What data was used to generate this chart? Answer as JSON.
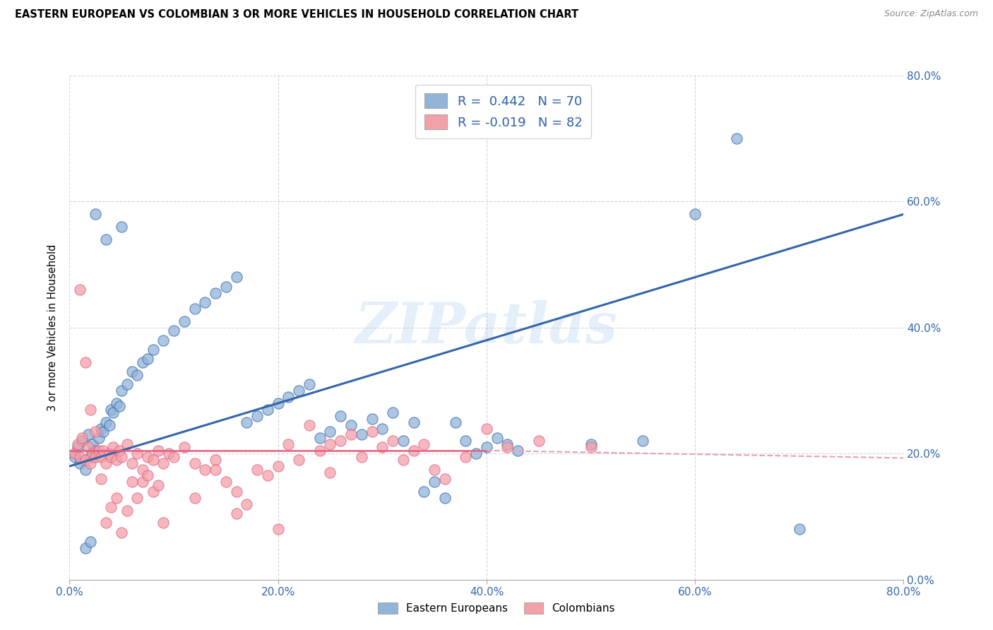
{
  "title": "EASTERN EUROPEAN VS COLOMBIAN 3 OR MORE VEHICLES IN HOUSEHOLD CORRELATION CHART",
  "source": "Source: ZipAtlas.com",
  "ylabel": "3 or more Vehicles in Household",
  "watermark": "ZIPatlas",
  "blue_color": "#92B4D9",
  "pink_color": "#F4A0A8",
  "blue_line_color": "#3366AA",
  "pink_line_color": "#E06080",
  "pink_line_dashed_color": "#E8A0B0",
  "r_blue": 0.442,
  "n_blue": 70,
  "r_pink": -0.019,
  "n_pink": 82,
  "xlim": [
    0.0,
    0.8
  ],
  "ylim": [
    0.0,
    0.8
  ],
  "blue_scatter_x": [
    0.005,
    0.008,
    0.01,
    0.012,
    0.015,
    0.018,
    0.02,
    0.022,
    0.025,
    0.028,
    0.03,
    0.032,
    0.035,
    0.038,
    0.04,
    0.042,
    0.045,
    0.048,
    0.05,
    0.055,
    0.06,
    0.065,
    0.07,
    0.075,
    0.08,
    0.09,
    0.1,
    0.11,
    0.12,
    0.13,
    0.14,
    0.15,
    0.16,
    0.17,
    0.18,
    0.19,
    0.2,
    0.21,
    0.22,
    0.23,
    0.24,
    0.25,
    0.26,
    0.27,
    0.28,
    0.29,
    0.3,
    0.31,
    0.32,
    0.33,
    0.34,
    0.35,
    0.36,
    0.37,
    0.38,
    0.39,
    0.4,
    0.41,
    0.42,
    0.43,
    0.5,
    0.55,
    0.6,
    0.64,
    0.7,
    0.05,
    0.025,
    0.035,
    0.015,
    0.02
  ],
  "blue_scatter_y": [
    0.195,
    0.21,
    0.185,
    0.22,
    0.175,
    0.23,
    0.195,
    0.215,
    0.205,
    0.225,
    0.24,
    0.235,
    0.25,
    0.245,
    0.27,
    0.265,
    0.28,
    0.275,
    0.3,
    0.31,
    0.33,
    0.325,
    0.345,
    0.35,
    0.365,
    0.38,
    0.395,
    0.41,
    0.43,
    0.44,
    0.455,
    0.465,
    0.48,
    0.25,
    0.26,
    0.27,
    0.28,
    0.29,
    0.3,
    0.31,
    0.225,
    0.235,
    0.26,
    0.245,
    0.23,
    0.255,
    0.24,
    0.265,
    0.22,
    0.25,
    0.14,
    0.155,
    0.13,
    0.25,
    0.22,
    0.2,
    0.21,
    0.225,
    0.215,
    0.205,
    0.215,
    0.22,
    0.58,
    0.7,
    0.08,
    0.56,
    0.58,
    0.54,
    0.05,
    0.06
  ],
  "pink_scatter_x": [
    0.005,
    0.008,
    0.01,
    0.012,
    0.015,
    0.018,
    0.02,
    0.022,
    0.025,
    0.028,
    0.03,
    0.032,
    0.035,
    0.038,
    0.04,
    0.042,
    0.045,
    0.048,
    0.05,
    0.055,
    0.06,
    0.065,
    0.07,
    0.075,
    0.08,
    0.085,
    0.09,
    0.095,
    0.1,
    0.11,
    0.12,
    0.13,
    0.14,
    0.15,
    0.16,
    0.17,
    0.18,
    0.19,
    0.2,
    0.21,
    0.22,
    0.23,
    0.24,
    0.25,
    0.26,
    0.27,
    0.28,
    0.29,
    0.3,
    0.31,
    0.32,
    0.33,
    0.34,
    0.35,
    0.36,
    0.38,
    0.4,
    0.42,
    0.45,
    0.5,
    0.01,
    0.015,
    0.02,
    0.025,
    0.03,
    0.035,
    0.04,
    0.045,
    0.05,
    0.055,
    0.06,
    0.065,
    0.07,
    0.075,
    0.08,
    0.085,
    0.09,
    0.12,
    0.14,
    0.16,
    0.2,
    0.25
  ],
  "pink_scatter_y": [
    0.2,
    0.215,
    0.195,
    0.225,
    0.19,
    0.21,
    0.185,
    0.2,
    0.195,
    0.205,
    0.195,
    0.205,
    0.185,
    0.2,
    0.195,
    0.21,
    0.19,
    0.205,
    0.195,
    0.215,
    0.185,
    0.2,
    0.175,
    0.195,
    0.19,
    0.205,
    0.185,
    0.2,
    0.195,
    0.21,
    0.185,
    0.175,
    0.19,
    0.155,
    0.14,
    0.12,
    0.175,
    0.165,
    0.18,
    0.215,
    0.19,
    0.245,
    0.205,
    0.215,
    0.22,
    0.23,
    0.195,
    0.235,
    0.21,
    0.22,
    0.19,
    0.205,
    0.215,
    0.175,
    0.16,
    0.195,
    0.24,
    0.21,
    0.22,
    0.21,
    0.46,
    0.345,
    0.27,
    0.235,
    0.16,
    0.09,
    0.115,
    0.13,
    0.075,
    0.11,
    0.155,
    0.13,
    0.155,
    0.165,
    0.14,
    0.15,
    0.09,
    0.13,
    0.175,
    0.105,
    0.08,
    0.17
  ],
  "blue_line_x0": 0.0,
  "blue_line_y0": 0.18,
  "blue_line_x1": 0.8,
  "blue_line_y1": 0.58,
  "pink_line_solid_x0": 0.0,
  "pink_line_solid_y0": 0.205,
  "pink_line_solid_x1": 0.4,
  "pink_line_solid_y1": 0.205,
  "pink_line_dashed_x0": 0.4,
  "pink_line_dashed_y0": 0.205,
  "pink_line_dashed_x1": 0.8,
  "pink_line_dashed_y1": 0.193
}
